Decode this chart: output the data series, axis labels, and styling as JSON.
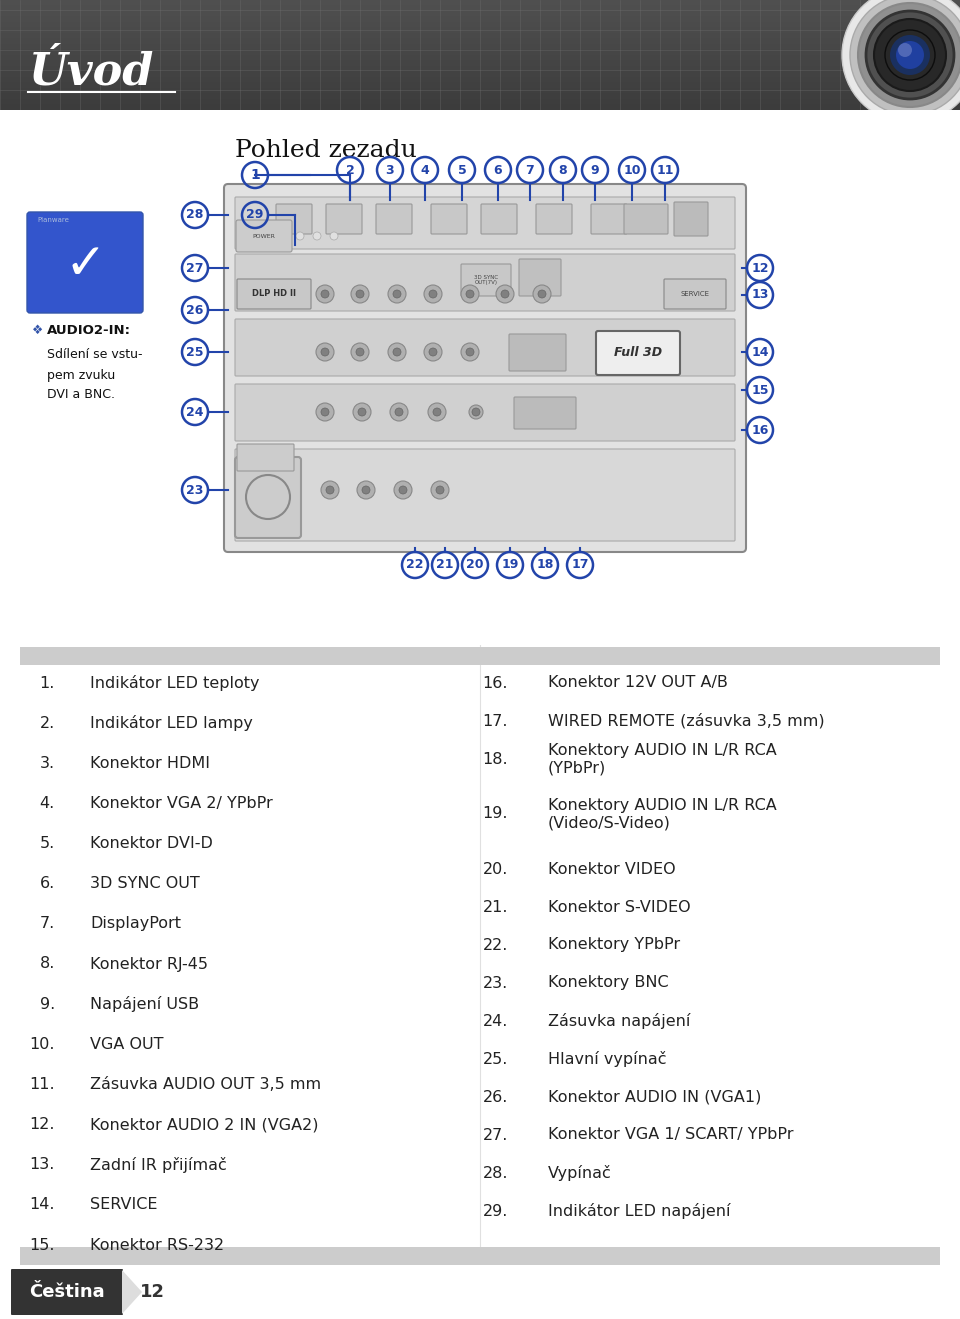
{
  "title": "Úvod",
  "section_title": "Pohled zezadu",
  "note_title": "AUDIO2-IN:",
  "note_lines": [
    "Sdílení se vstu-",
    "pem zvuku",
    "DVI a BNC."
  ],
  "left_items": [
    {
      "num": "1.",
      "text": "Indikátor LED teploty"
    },
    {
      "num": "2.",
      "text": "Indikátor LED lampy"
    },
    {
      "num": "3.",
      "text": "Konektor HDMI"
    },
    {
      "num": "4.",
      "text": "Konektor VGA 2/ YPbPr"
    },
    {
      "num": "5.",
      "text": "Konektor DVI-D"
    },
    {
      "num": "6.",
      "text": "3D SYNC OUT"
    },
    {
      "num": "7.",
      "text": "DisplayPort"
    },
    {
      "num": "8.",
      "text": "Konektor RJ-45"
    },
    {
      "num": "9.",
      "text": "Napájení USB"
    },
    {
      "num": "10.",
      "text": "VGA OUT"
    },
    {
      "num": "11.",
      "text": "Zásuvka AUDIO OUT 3,5 mm"
    },
    {
      "num": "12.",
      "text": "Konektor AUDIO 2 IN (VGA2)"
    },
    {
      "num": "13.",
      "text": "Zadní IR přijímač"
    },
    {
      "num": "14.",
      "text": "SERVICE"
    },
    {
      "num": "15.",
      "text": "Konektor RS-232"
    }
  ],
  "right_items": [
    {
      "num": "16.",
      "text": "Konektor 12V OUT A/B",
      "multiline": false
    },
    {
      "num": "17.",
      "text": "WIRED REMOTE (zásuvka 3,5 mm)",
      "multiline": false
    },
    {
      "num": "18.",
      "text": "Konektory AUDIO IN L/R RCA\n(YPbPr)",
      "multiline": true
    },
    {
      "num": "19.",
      "text": "Konektory AUDIO IN L/R RCA\n(Video/S-Video)",
      "multiline": true
    },
    {
      "num": "20.",
      "text": "Konektor VIDEO",
      "multiline": false
    },
    {
      "num": "21.",
      "text": "Konektor S-VIDEO",
      "multiline": false
    },
    {
      "num": "22.",
      "text": "Konektory YPbPr",
      "multiline": false
    },
    {
      "num": "23.",
      "text": "Konektory BNC",
      "multiline": false
    },
    {
      "num": "24.",
      "text": "Zásuvka napájení",
      "multiline": false
    },
    {
      "num": "25.",
      "text": "Hlavní vypínač",
      "multiline": false
    },
    {
      "num": "26.",
      "text": "Konektor AUDIO IN (VGA1)",
      "multiline": false
    },
    {
      "num": "27.",
      "text": "Konektor VGA 1/ SCART/ YPbPr",
      "multiline": false
    },
    {
      "num": "28.",
      "text": "Vypínač",
      "multiline": false
    },
    {
      "num": "29.",
      "text": "Indikátor LED napájení",
      "multiline": false
    }
  ],
  "footer_text": "Čeština",
  "footer_page": "12",
  "header_bg": "#505050",
  "header_grid_color": "#686868",
  "body_bg": "#ffffff",
  "diagram_bg": "#f8f8f8",
  "circle_color": "#2244aa",
  "line_color": "#2244aa",
  "list_text_color": "#222222",
  "list_num_color": "#222222",
  "sep_color": "#cccccc",
  "footer_dark": "#333333",
  "footer_light": "#dddddd"
}
